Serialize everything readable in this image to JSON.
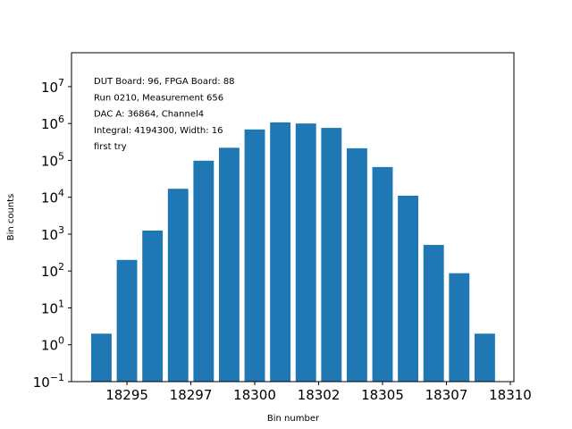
{
  "chart_data": {
    "type": "bar",
    "log_y": true,
    "color": "#1f77b4",
    "bar_width": 0.8,
    "x": [
      18294,
      18295,
      18296,
      18297,
      18298,
      18299,
      18300,
      18301,
      18302,
      18303,
      18304,
      18305,
      18306,
      18307,
      18308,
      18309
    ],
    "values": [
      2,
      200,
      1250,
      17000,
      98000,
      220000,
      690000,
      1070000,
      1000000,
      760000,
      213000,
      66000,
      11000,
      510,
      87,
      2
    ],
    "xlim": [
      18292.83,
      18310.14
    ],
    "xticks": [
      18295,
      {
        "value": 18297.5,
        "label": "18297"
      },
      18300,
      {
        "value": 18302.5,
        "label": "18302"
      },
      18305,
      {
        "value": 18307.5,
        "label": "18307"
      },
      18310
    ],
    "ylim": [
      0.1,
      83000000
    ],
    "yticks": [
      {
        "value": 0.1,
        "label": "10",
        "exponent": "−1"
      },
      {
        "value": 1,
        "label": "10",
        "exponent": "0"
      },
      {
        "value": 10,
        "label": "10",
        "exponent": "1"
      },
      {
        "value": 100,
        "label": "10",
        "exponent": "2"
      },
      {
        "value": 1000,
        "label": "10",
        "exponent": "3"
      },
      {
        "value": 10000,
        "label": "10",
        "exponent": "4"
      },
      {
        "value": 100000,
        "label": "10",
        "exponent": "5"
      },
      {
        "value": 1000000,
        "label": "10",
        "exponent": "6"
      },
      {
        "value": 10000000,
        "label": "10",
        "exponent": "7"
      }
    ],
    "x_label": "Bin number",
    "y_label": "Bin counts",
    "annotations": [
      "DUT Board: 96, FPGA Board: 88",
      "Run 0210, Measurement 656",
      "DAC A: 36864, Channel4",
      "Integral: 4194300, Width: 16",
      "first try"
    ]
  }
}
